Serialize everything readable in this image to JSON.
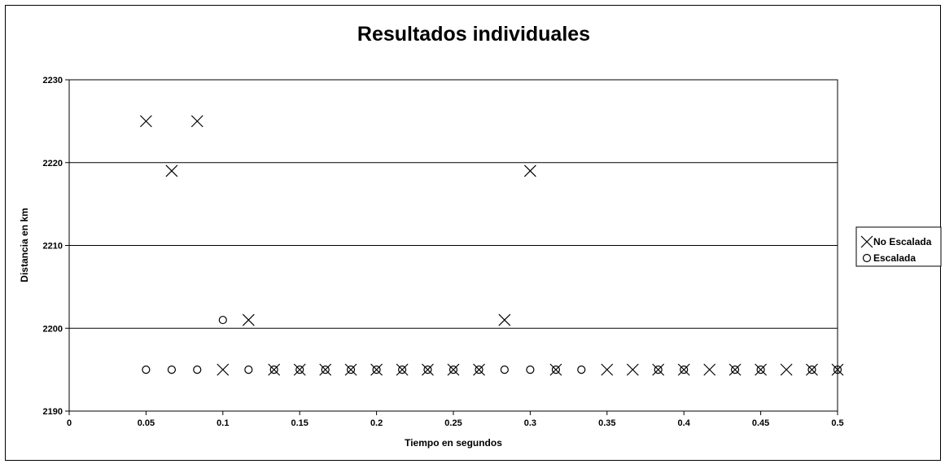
{
  "chart_data": {
    "type": "scatter",
    "title": "Resultados individuales",
    "xlabel": "Tiempo en segundos",
    "ylabel": "Distancia en km",
    "xlim": [
      0,
      0.5
    ],
    "ylim": [
      2190,
      2230
    ],
    "x_ticks": [
      "0",
      "0.05",
      "0.1",
      "0.15",
      "0.2",
      "0.25",
      "0.3",
      "0.35",
      "0.4",
      "0.45",
      "0.5"
    ],
    "y_ticks": [
      "2190",
      "2200",
      "2210",
      "2220",
      "2230"
    ],
    "grid": "horizontal",
    "legend_position": "right",
    "series": [
      {
        "name": "No Escalada",
        "marker": "x",
        "color": "#000000",
        "points": [
          [
            0.05,
            2225
          ],
          [
            0.0667,
            2219
          ],
          [
            0.0833,
            2225
          ],
          [
            0.1,
            2195
          ],
          [
            0.1167,
            2201
          ],
          [
            0.1333,
            2195
          ],
          [
            0.15,
            2195
          ],
          [
            0.1667,
            2195
          ],
          [
            0.1833,
            2195
          ],
          [
            0.2,
            2195
          ],
          [
            0.2167,
            2195
          ],
          [
            0.2333,
            2195
          ],
          [
            0.25,
            2195
          ],
          [
            0.2667,
            2195
          ],
          [
            0.2833,
            2201
          ],
          [
            0.3,
            2219
          ],
          [
            0.3167,
            2195
          ],
          [
            0.35,
            2195
          ],
          [
            0.3667,
            2195
          ],
          [
            0.3833,
            2195
          ],
          [
            0.4,
            2195
          ],
          [
            0.4167,
            2195
          ],
          [
            0.4333,
            2195
          ],
          [
            0.45,
            2195
          ],
          [
            0.4667,
            2195
          ],
          [
            0.4833,
            2195
          ],
          [
            0.5,
            2195
          ]
        ]
      },
      {
        "name": "Escalada",
        "marker": "circle",
        "color": "#000000",
        "points": [
          [
            0.05,
            2195
          ],
          [
            0.0667,
            2195
          ],
          [
            0.0833,
            2195
          ],
          [
            0.1,
            2201
          ],
          [
            0.1167,
            2195
          ],
          [
            0.1333,
            2195
          ],
          [
            0.15,
            2195
          ],
          [
            0.1667,
            2195
          ],
          [
            0.1833,
            2195
          ],
          [
            0.2,
            2195
          ],
          [
            0.2167,
            2195
          ],
          [
            0.2333,
            2195
          ],
          [
            0.25,
            2195
          ],
          [
            0.2667,
            2195
          ],
          [
            0.2833,
            2195
          ],
          [
            0.3,
            2195
          ],
          [
            0.3167,
            2195
          ],
          [
            0.3333,
            2195
          ],
          [
            0.3833,
            2195
          ],
          [
            0.4,
            2195
          ],
          [
            0.4333,
            2195
          ],
          [
            0.45,
            2195
          ],
          [
            0.4833,
            2195
          ],
          [
            0.5,
            2195
          ]
        ]
      }
    ]
  }
}
